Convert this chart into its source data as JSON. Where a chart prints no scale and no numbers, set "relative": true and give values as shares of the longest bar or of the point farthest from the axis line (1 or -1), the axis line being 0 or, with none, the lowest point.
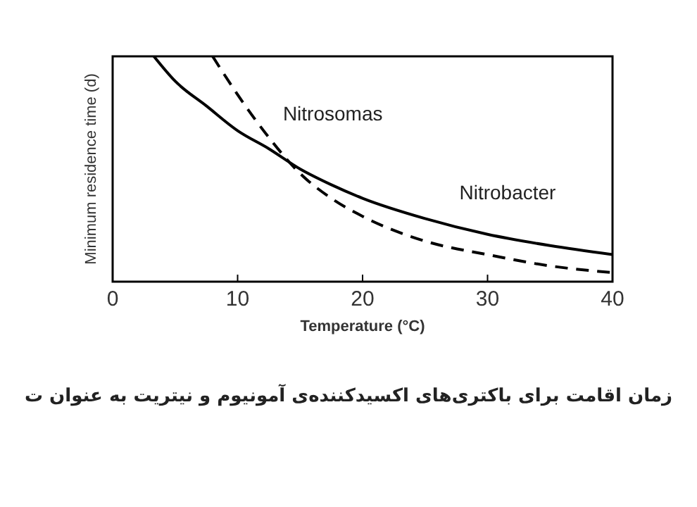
{
  "chart_data": {
    "type": "line",
    "relative": true,
    "xlabel": "Temperature   (°C)",
    "ylabel": "Minimum residence time (d)",
    "annotations": [
      "زمان اقامت برای باکتری‌های اکسیدکننده‌ی آمونیوم و نیتریت به عنوان ت"
    ],
    "xlim": [
      0,
      40
    ],
    "xticks": [
      0,
      10,
      20,
      30,
      40
    ],
    "grid": false,
    "series": [
      {
        "name": "Nitrosomas",
        "color": "#000000",
        "line_style": "dashed",
        "x": [
          8,
          10,
          12.5,
          15,
          17.5,
          20,
          25,
          30,
          35,
          40
        ],
        "values": [
          1,
          0.83,
          0.64,
          0.48,
          0.37,
          0.29,
          0.18,
          0.12,
          0.07,
          0.04
        ]
      },
      {
        "name": "Nitrobacter",
        "color": "#000000",
        "line_style": "solid",
        "x": [
          3.3,
          5,
          7.5,
          10,
          12.5,
          15,
          17.5,
          20,
          25,
          30,
          35,
          40
        ],
        "values": [
          1,
          0.89,
          0.78,
          0.67,
          0.59,
          0.5,
          0.43,
          0.37,
          0.28,
          0.21,
          0.16,
          0.12
        ]
      }
    ]
  }
}
